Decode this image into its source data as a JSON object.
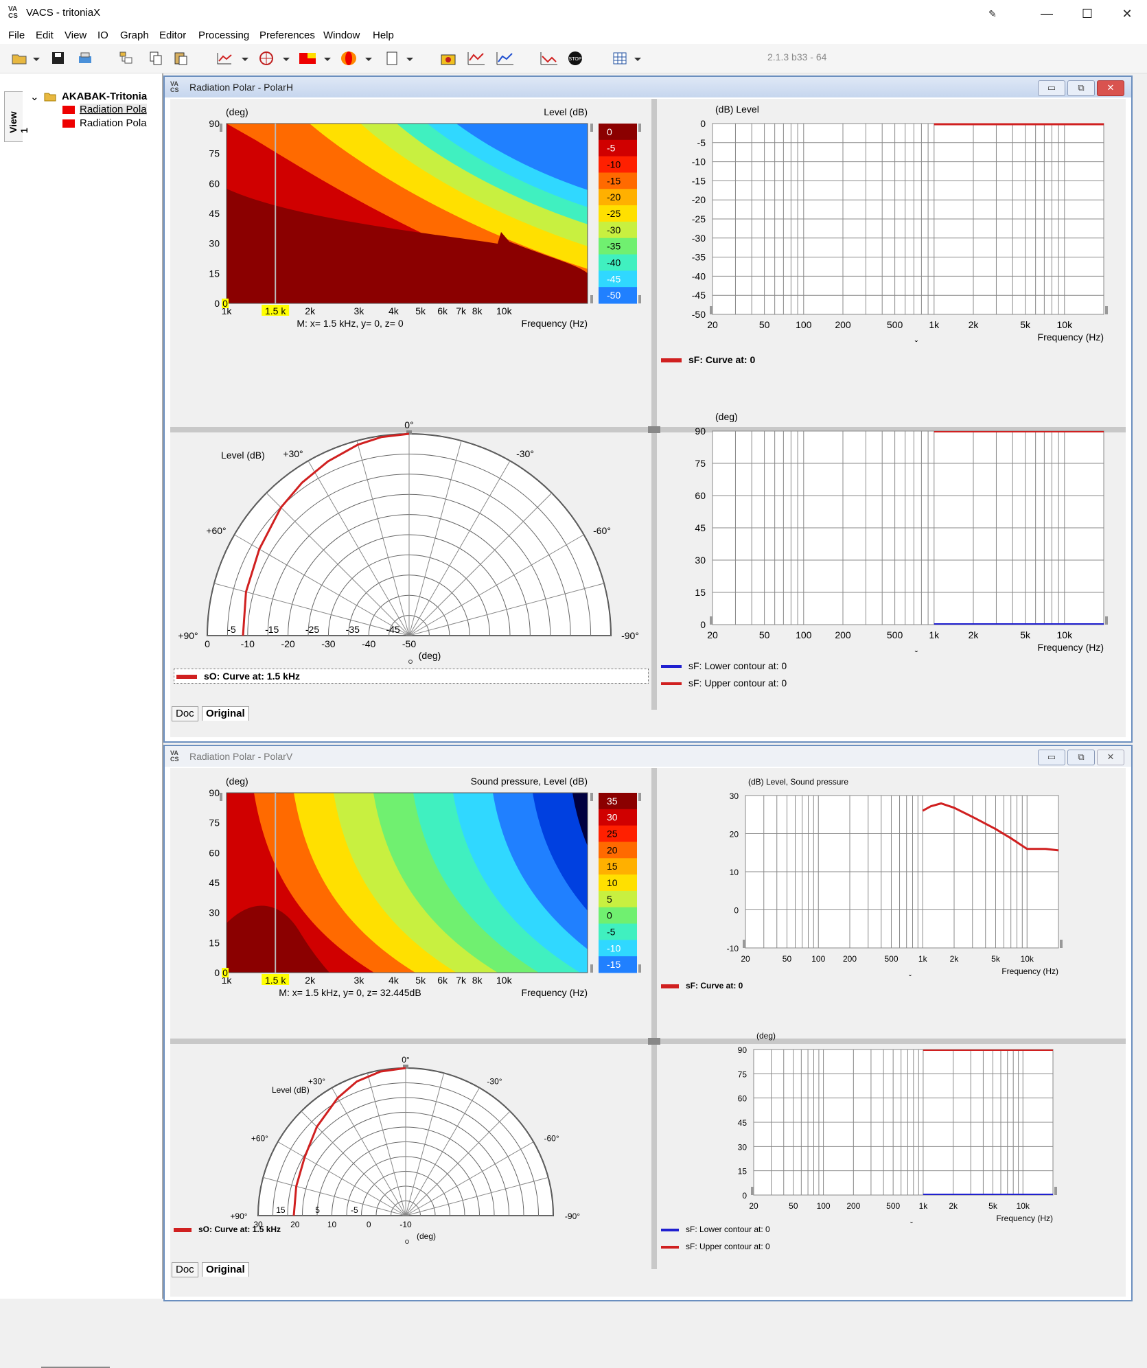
{
  "window": {
    "title": "VACS - tritoniaX",
    "icon": "vacs-app-icon",
    "controls": [
      "minimize-icon",
      "maximize-icon",
      "close-icon"
    ]
  },
  "menu": [
    "File",
    "Edit",
    "View",
    "IO",
    "Graph",
    "Editor",
    "Processing",
    "Preferences",
    "Window",
    "Help"
  ],
  "toolbar": {
    "version": "2.1.3 b33 - 64"
  },
  "sidebar": {
    "tab": "View 1",
    "root": "AKABAK-Tritonia",
    "items": [
      "Radiation Pola",
      "Radiation Pola"
    ]
  },
  "windows": [
    {
      "title": "Radiation Polar - PolarH",
      "contour": {
        "y_unit": "(deg)",
        "z_label": "Level  (dB)",
        "x_label": "Frequency  (Hz)",
        "y_ticks": [
          "90",
          "75",
          "60",
          "45",
          "30",
          "15",
          "0"
        ],
        "x_ticks": [
          "1k",
          "1.5 k",
          "2k",
          "3k",
          "4k",
          "5k",
          "6k",
          "7k",
          "8k",
          "10k"
        ],
        "marker_info": "M:  x= 1.5 kHz,  y= 0, z= 0",
        "scale": [
          "0",
          "-5",
          "-10",
          "-15",
          "-20",
          "-25",
          "-30",
          "-35",
          "-40",
          "-45",
          "-50"
        ],
        "zero_marker": "0"
      },
      "freq_chart": {
        "y_label": "(dB)  Level",
        "y_ticks": [
          "0",
          "-5",
          "-10",
          "-15",
          "-20",
          "-25",
          "-30",
          "-35",
          "-40",
          "-45",
          "-50"
        ],
        "x_ticks": [
          "20",
          "50",
          "100",
          "200",
          "500",
          "1k",
          "2k",
          "5k",
          "10k"
        ],
        "x_label": "Frequency  (Hz)"
      },
      "freq_legend": [
        "sF: Curve at: 0"
      ],
      "polar": {
        "label": "Level  (dB)",
        "top": "0°",
        "angles_left": [
          "+30°",
          "+60°",
          "+90°"
        ],
        "angles_right": [
          "-30°",
          "-60°",
          "-90°"
        ],
        "ring_labels_in": [
          "-5",
          "-15",
          "-25",
          "-35",
          "-45"
        ],
        "ring_labels_out": [
          "0",
          "-10",
          "-20",
          "-30",
          "-40",
          "-50"
        ],
        "unit": "(deg)"
      },
      "polar_legend": "sO: Curve at: 1.5 kHz",
      "angle_chart": {
        "y_label": "(deg)",
        "y_ticks": [
          "90",
          "75",
          "60",
          "45",
          "30",
          "15",
          "0"
        ],
        "x_ticks": [
          "20",
          "50",
          "100",
          "200",
          "500",
          "1k",
          "2k",
          "5k",
          "10k"
        ],
        "x_label": "Frequency  (Hz)"
      },
      "angle_legend": [
        "sF: Lower contour at: 0",
        "sF: Upper contour at: 0"
      ],
      "tabs": [
        "Doc",
        "Original"
      ]
    },
    {
      "title": "Radiation Polar - PolarV",
      "contour": {
        "y_unit": "(deg)",
        "z_label": "Sound pressure, Level  (dB)",
        "x_label": "Frequency  (Hz)",
        "y_ticks": [
          "90",
          "75",
          "60",
          "45",
          "30",
          "15",
          "0"
        ],
        "x_ticks": [
          "1k",
          "1.5 k",
          "2k",
          "3k",
          "4k",
          "5k",
          "6k",
          "7k",
          "8k",
          "10k"
        ],
        "marker_info": "M:  x= 1.5 kHz,  y= 0, z= 32.445dB",
        "scale": [
          "35",
          "30",
          "25",
          "20",
          "15",
          "10",
          "5",
          "0",
          "-5",
          "-10",
          "-15"
        ],
        "zero_marker": "0"
      },
      "freq_chart": {
        "y_label": "(dB)  Level, Sound pressure",
        "y_ticks": [
          "30",
          "20",
          "10",
          "0",
          "-10"
        ],
        "x_ticks": [
          "20",
          "50",
          "100",
          "200",
          "500",
          "1k",
          "2k",
          "5k",
          "10k"
        ],
        "x_label": "Frequency  (Hz)"
      },
      "freq_legend": [
        "sF: Curve at: 0"
      ],
      "polar": {
        "label": "Level  (dB)",
        "top": "0°",
        "angles_left": [
          "+30°",
          "+60°",
          "+90°"
        ],
        "angles_right": [
          "-30°",
          "-60°",
          "-90°"
        ],
        "ring_labels_in": [
          "15",
          "5",
          "-5"
        ],
        "ring_labels_out": [
          "30",
          "20",
          "10",
          "0",
          "-10"
        ],
        "unit": "(deg)"
      },
      "polar_legend": "sO: Curve at: 1.5 kHz",
      "angle_chart": {
        "y_label": "(deg)",
        "y_ticks": [
          "90",
          "75",
          "60",
          "45",
          "30",
          "15",
          "0"
        ],
        "x_ticks": [
          "20",
          "50",
          "100",
          "200",
          "500",
          "1k",
          "2k",
          "5k",
          "10k"
        ],
        "x_label": "Frequency  (Hz)"
      },
      "angle_legend": [
        "sF: Lower contour at: 0",
        "sF: Upper contour at: 0"
      ],
      "tabs": [
        "Doc",
        "Original"
      ]
    }
  ],
  "colors": {
    "curve": "#d02020",
    "lower": "#2020d0",
    "grid": "#999999",
    "chrome": "#6b8fbf"
  },
  "chart_data": [
    {
      "type": "heatmap",
      "name": "PolarH contour",
      "x_range_hz": [
        1000,
        20000
      ],
      "y_range_deg": [
        0,
        90
      ],
      "z_range_db": [
        -50,
        0
      ],
      "z_step": 5,
      "levels": [
        "0",
        "-5",
        "-10",
        "-15",
        "-20",
        "-25",
        "-30",
        "-35",
        "-40",
        "-45",
        "-50"
      ]
    },
    {
      "type": "line",
      "name": "PolarH level vs frequency",
      "x": [
        1000,
        20000
      ],
      "y": [
        0,
        0
      ],
      "ylim": [
        -50,
        0
      ],
      "xscale": "log",
      "xlim": [
        20,
        20000
      ]
    },
    {
      "type": "line",
      "name": "PolarH polar",
      "angle_deg": [
        0,
        15,
        30,
        45,
        60,
        75,
        90
      ],
      "level_db": [
        0,
        -1,
        -2.5,
        -4,
        -5,
        -6,
        -7
      ],
      "rlim": [
        -50,
        0
      ]
    },
    {
      "type": "line",
      "name": "PolarH contour bounds",
      "x": [
        1000,
        20000
      ],
      "upper": [
        90,
        90
      ],
      "lower": [
        0,
        0
      ],
      "ylim": [
        0,
        90
      ],
      "xscale": "log"
    },
    {
      "type": "heatmap",
      "name": "PolarV contour",
      "x_range_hz": [
        1000,
        20000
      ],
      "y_range_deg": [
        0,
        90
      ],
      "z_range_db": [
        -15,
        35
      ],
      "z_step": 5,
      "levels": [
        "35",
        "30",
        "25",
        "20",
        "15",
        "10",
        "5",
        "0",
        "-5",
        "-10",
        "-15"
      ]
    },
    {
      "type": "line",
      "name": "PolarV level vs frequency",
      "x": [
        1000,
        1200,
        1500,
        2000,
        3000,
        5000,
        7000,
        10000,
        15000,
        20000
      ],
      "y": [
        30,
        31.5,
        32.4,
        31,
        28,
        24,
        21,
        17.5,
        17.5,
        17
      ],
      "ylim": [
        -15,
        35
      ],
      "xscale": "log",
      "xlim": [
        20,
        20000
      ]
    },
    {
      "type": "line",
      "name": "PolarV polar",
      "angle_deg": [
        0,
        15,
        30,
        45,
        60,
        75,
        90
      ],
      "level_db": [
        32.4,
        32,
        31,
        29.5,
        28,
        27,
        26.5
      ],
      "rlim": [
        -15,
        35
      ]
    },
    {
      "type": "line",
      "name": "PolarV contour bounds",
      "x": [
        1000,
        20000
      ],
      "upper": [
        90,
        90
      ],
      "lower": [
        0,
        0
      ],
      "ylim": [
        0,
        90
      ],
      "xscale": "log"
    }
  ]
}
